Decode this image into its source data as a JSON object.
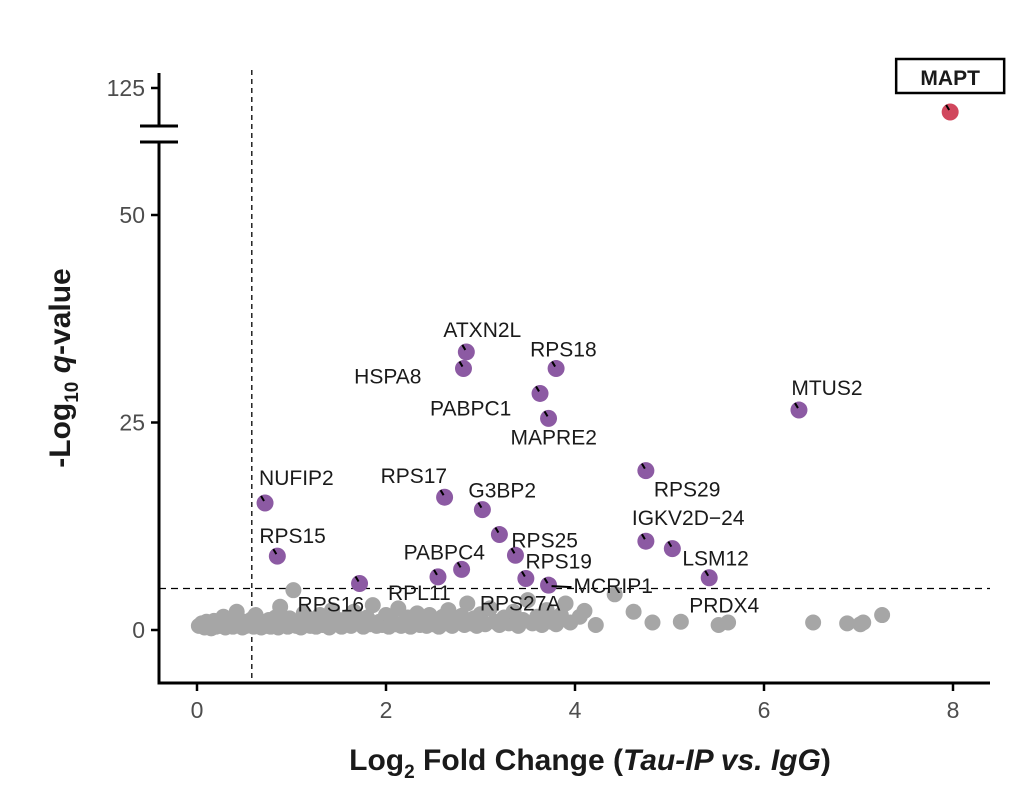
{
  "chart_data": {
    "type": "scatter",
    "xlabel": {
      "prefix": "Log",
      "sub": "2",
      "main": " Fold Change (",
      "italic": "Tau-IP vs. IgG",
      "suffix": ")"
    },
    "ylabel": {
      "prefix": "-Log",
      "sub": "10",
      "italic": " q",
      "suffix": "-value"
    },
    "xlim": [
      0,
      8
    ],
    "x_ticks": [
      0,
      2,
      4,
      6,
      8
    ],
    "y_ticks": [
      0,
      25,
      50
    ],
    "y_break_ticks": [
      125
    ],
    "ylim_lower": [
      0,
      80
    ],
    "y_break": true,
    "thresholds": {
      "x": 0.58,
      "y": 5
    },
    "colors": {
      "significant": "#8c5aa3",
      "target": "#d1475d",
      "background": "#a6a6a6"
    },
    "highlight_box": "MAPT",
    "points": [
      {
        "gene": "MAPT",
        "x": 7.97,
        "y": 122,
        "group": "target"
      },
      {
        "gene": "MTUS2",
        "x": 6.37,
        "y": 26.5,
        "group": "significant"
      },
      {
        "gene": "ATXN2L",
        "x": 2.85,
        "y": 33.5,
        "group": "significant"
      },
      {
        "gene": "HSPA8",
        "x": 2.82,
        "y": 31.5,
        "group": "significant"
      },
      {
        "gene": "RPS18",
        "x": 3.8,
        "y": 31.5,
        "group": "significant"
      },
      {
        "gene": "PABPC1",
        "x": 3.63,
        "y": 28.5,
        "group": "significant"
      },
      {
        "gene": "MAPRE2",
        "x": 3.72,
        "y": 25.5,
        "group": "significant"
      },
      {
        "gene": "NUFIP2",
        "x": 0.72,
        "y": 15.3,
        "group": "significant"
      },
      {
        "gene": "RPS17",
        "x": 2.62,
        "y": 16.0,
        "group": "significant"
      },
      {
        "gene": "G3BP2",
        "x": 3.02,
        "y": 14.5,
        "group": "significant"
      },
      {
        "gene": "RPS29",
        "x": 4.75,
        "y": 19.2,
        "group": "significant"
      },
      {
        "gene": "RPS25",
        "x": 3.2,
        "y": 11.5,
        "group": "significant"
      },
      {
        "gene": "IGKV2D−24",
        "x": 4.75,
        "y": 10.7,
        "group": "significant"
      },
      {
        "gene": "LSM12",
        "x": 5.03,
        "y": 9.8,
        "group": "significant"
      },
      {
        "gene": "RPS15",
        "x": 0.85,
        "y": 8.9,
        "group": "significant"
      },
      {
        "gene": "PABPC4",
        "x": 2.8,
        "y": 7.3,
        "group": "significant"
      },
      {
        "gene": "RPS19",
        "x": 3.37,
        "y": 9.0,
        "group": "significant"
      },
      {
        "gene": "MCRIP1",
        "x": 3.72,
        "y": 5.4,
        "group": "significant"
      },
      {
        "gene": "PRDX4",
        "x": 5.42,
        "y": 6.3,
        "group": "significant"
      },
      {
        "gene": "RPS16",
        "x": 1.72,
        "y": 5.6,
        "group": "significant"
      },
      {
        "gene": "RPL11",
        "x": 2.55,
        "y": 6.4,
        "group": "significant"
      },
      {
        "gene": "RPS27A",
        "x": 3.48,
        "y": 6.2,
        "group": "significant"
      }
    ],
    "background_points": [
      [
        0.02,
        0.5
      ],
      [
        0.05,
        0.8
      ],
      [
        0.08,
        0.3
      ],
      [
        0.1,
        1.0
      ],
      [
        0.12,
        0.6
      ],
      [
        0.15,
        0.2
      ],
      [
        0.18,
        1.1
      ],
      [
        0.2,
        0.4
      ],
      [
        0.22,
        0.9
      ],
      [
        0.25,
        0.5
      ],
      [
        0.28,
        1.6
      ],
      [
        0.3,
        0.3
      ],
      [
        0.33,
        0.7
      ],
      [
        0.36,
        1.2
      ],
      [
        0.38,
        0.4
      ],
      [
        0.4,
        0.9
      ],
      [
        0.42,
        2.2
      ],
      [
        0.45,
        0.6
      ],
      [
        0.48,
        0.3
      ],
      [
        0.5,
        1.0
      ],
      [
        0.52,
        0.5
      ],
      [
        0.55,
        0.8
      ],
      [
        0.58,
        1.3
      ],
      [
        0.6,
        0.4
      ],
      [
        0.62,
        1.8
      ],
      [
        0.65,
        0.6
      ],
      [
        0.68,
        0.3
      ],
      [
        0.7,
        0.9
      ],
      [
        0.73,
        0.5
      ],
      [
        0.76,
        1.2
      ],
      [
        0.78,
        0.4
      ],
      [
        0.8,
        0.7
      ],
      [
        0.83,
        1.5
      ],
      [
        0.86,
        0.3
      ],
      [
        0.88,
        2.8
      ],
      [
        0.9,
        0.6
      ],
      [
        0.93,
        1.0
      ],
      [
        0.96,
        0.4
      ],
      [
        0.98,
        1.4
      ],
      [
        1.0,
        0.7
      ],
      [
        1.02,
        4.8
      ],
      [
        1.05,
        0.5
      ],
      [
        1.08,
        1.1
      ],
      [
        1.1,
        0.3
      ],
      [
        1.13,
        2.0
      ],
      [
        1.16,
        0.8
      ],
      [
        1.2,
        0.5
      ],
      [
        1.23,
        1.3
      ],
      [
        1.26,
        0.4
      ],
      [
        1.3,
        1.8
      ],
      [
        1.33,
        0.6
      ],
      [
        1.36,
        1.0
      ],
      [
        1.4,
        0.3
      ],
      [
        1.43,
        2.4
      ],
      [
        1.46,
        0.7
      ],
      [
        1.5,
        1.2
      ],
      [
        1.53,
        0.4
      ],
      [
        1.56,
        0.9
      ],
      [
        1.6,
        1.6
      ],
      [
        1.63,
        0.5
      ],
      [
        1.66,
        2.2
      ],
      [
        1.7,
        0.8
      ],
      [
        1.73,
        1.1
      ],
      [
        1.76,
        0.4
      ],
      [
        1.8,
        1.5
      ],
      [
        1.83,
        0.7
      ],
      [
        1.86,
        3.0
      ],
      [
        1.9,
        0.5
      ],
      [
        1.93,
        1.0
      ],
      [
        1.96,
        0.6
      ],
      [
        2.0,
        1.8
      ],
      [
        2.03,
        0.4
      ],
      [
        2.06,
        1.2
      ],
      [
        2.1,
        0.7
      ],
      [
        2.13,
        2.6
      ],
      [
        2.16,
        0.5
      ],
      [
        2.2,
        1.0
      ],
      [
        2.23,
        1.5
      ],
      [
        2.26,
        0.4
      ],
      [
        2.3,
        0.9
      ],
      [
        2.33,
        2.0
      ],
      [
        2.36,
        0.6
      ],
      [
        2.4,
        1.3
      ],
      [
        2.43,
        0.5
      ],
      [
        2.46,
        1.8
      ],
      [
        2.5,
        0.7
      ],
      [
        2.53,
        1.1
      ],
      [
        2.56,
        0.4
      ],
      [
        2.6,
        1.6
      ],
      [
        2.63,
        0.8
      ],
      [
        2.66,
        2.4
      ],
      [
        2.7,
        0.5
      ],
      [
        2.73,
        1.2
      ],
      [
        2.76,
        0.9
      ],
      [
        2.8,
        1.7
      ],
      [
        2.83,
        0.6
      ],
      [
        2.86,
        3.2
      ],
      [
        2.9,
        0.8
      ],
      [
        2.93,
        1.4
      ],
      [
        2.96,
        0.5
      ],
      [
        3.0,
        1.9
      ],
      [
        3.05,
        0.7
      ],
      [
        3.1,
        2.6
      ],
      [
        3.15,
        1.0
      ],
      [
        3.2,
        0.6
      ],
      [
        3.25,
        1.5
      ],
      [
        3.3,
        0.8
      ],
      [
        3.35,
        2.2
      ],
      [
        3.4,
        0.5
      ],
      [
        3.45,
        1.2
      ],
      [
        3.5,
        3.6
      ],
      [
        3.55,
        0.8
      ],
      [
        3.6,
        1.6
      ],
      [
        3.65,
        0.6
      ],
      [
        3.7,
        2.4
      ],
      [
        3.75,
        1.0
      ],
      [
        3.8,
        0.7
      ],
      [
        3.85,
        1.8
      ],
      [
        3.9,
        3.2
      ],
      [
        3.95,
        0.9
      ],
      [
        4.05,
        1.6
      ],
      [
        4.1,
        2.3
      ],
      [
        4.22,
        0.6
      ],
      [
        4.42,
        4.3
      ],
      [
        4.62,
        2.2
      ],
      [
        4.82,
        0.9
      ],
      [
        5.12,
        1.0
      ],
      [
        5.52,
        0.6
      ],
      [
        5.62,
        0.9
      ],
      [
        6.52,
        0.9
      ],
      [
        6.88,
        0.8
      ],
      [
        7.05,
        0.9
      ],
      [
        7.25,
        1.8
      ],
      [
        7.02,
        0.7
      ]
    ]
  }
}
